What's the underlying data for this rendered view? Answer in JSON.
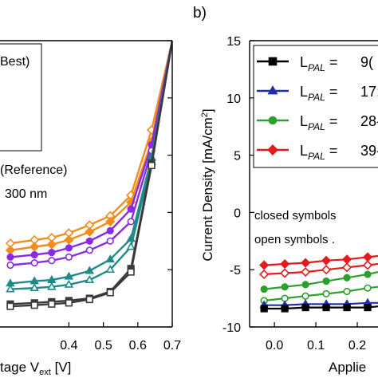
{
  "chart_data": [
    {
      "panel": "a",
      "type": "line",
      "xlabel_parts": [
        "tage V",
        "ext",
        " [V]"
      ],
      "xlim": [
        0.2,
        0.7
      ],
      "ylim": [
        -10,
        15
      ],
      "x_ticks": [
        0.4,
        0.5,
        0.6,
        0.7
      ],
      "x_tick_labels": [
        "0.4",
        "0.5",
        "0.6",
        "0.7"
      ],
      "legend_text": [
        "Best)"
      ],
      "annotations": [
        "(Reference)",
        "300 nm"
      ],
      "series": [
        {
          "color": "#f28c1b",
          "open": true,
          "x": [
            0.23,
            0.3,
            0.35,
            0.4,
            0.46,
            0.52,
            0.58,
            0.64,
            0.7
          ],
          "y": [
            -2.7,
            -2.4,
            -2.2,
            -1.8,
            -1.1,
            -0.3,
            1.5,
            7.2,
            15.0
          ]
        },
        {
          "color": "#f28c1b",
          "open": false,
          "x": [
            0.23,
            0.3,
            0.35,
            0.4,
            0.46,
            0.52,
            0.58,
            0.64,
            0.7
          ],
          "y": [
            -3.3,
            -3.0,
            -2.8,
            -2.4,
            -1.7,
            -0.8,
            0.9,
            6.2,
            15.0
          ]
        },
        {
          "color": "#8a2be2",
          "open": false,
          "x": [
            0.23,
            0.3,
            0.35,
            0.4,
            0.46,
            0.52,
            0.58,
            0.64,
            0.7
          ],
          "y": [
            -3.9,
            -3.7,
            -3.5,
            -3.1,
            -2.5,
            -1.6,
            0.3,
            5.9,
            15.0
          ]
        },
        {
          "color": "#8a2be2",
          "open": true,
          "x": [
            0.23,
            0.3,
            0.35,
            0.4,
            0.46,
            0.52,
            0.58,
            0.64,
            0.7
          ],
          "y": [
            -4.6,
            -4.4,
            -4.2,
            -3.9,
            -3.3,
            -2.5,
            -0.8,
            5.4,
            15.0
          ]
        },
        {
          "color": "#1f8a8a",
          "open": false,
          "x": [
            0.23,
            0.3,
            0.35,
            0.4,
            0.46,
            0.52,
            0.58,
            0.64,
            0.7
          ],
          "y": [
            -6.2,
            -6.0,
            -5.9,
            -5.6,
            -5.1,
            -4.1,
            -2.3,
            4.8,
            15.0
          ]
        },
        {
          "color": "#1f8a8a",
          "open": true,
          "x": [
            0.23,
            0.3,
            0.35,
            0.4,
            0.46,
            0.52,
            0.58,
            0.64,
            0.7
          ],
          "y": [
            -6.7,
            -6.6,
            -6.5,
            -6.3,
            -5.9,
            -5.0,
            -3.0,
            4.4,
            15.0
          ]
        },
        {
          "color": "#3a3a3a",
          "open": false,
          "x": [
            0.23,
            0.3,
            0.35,
            0.4,
            0.46,
            0.52,
            0.58,
            0.64,
            0.7
          ],
          "y": [
            -8.0,
            -7.9,
            -7.8,
            -7.7,
            -7.5,
            -6.9,
            -4.9,
            4.3,
            15.0
          ]
        },
        {
          "color": "#3a3a3a",
          "open": true,
          "x": [
            0.23,
            0.3,
            0.35,
            0.4,
            0.46,
            0.52,
            0.58,
            0.64,
            0.7
          ],
          "y": [
            -8.2,
            -8.1,
            -8.0,
            -7.9,
            -7.6,
            -7.0,
            -5.2,
            4.1,
            15.0
          ]
        }
      ]
    },
    {
      "panel": "b",
      "panel_label": "b)",
      "type": "line",
      "ylabel_parts": [
        "Current Density [mA/cm",
        "2",
        "]"
      ],
      "xlabel": "Applie",
      "xlim": [
        -0.06,
        0.25
      ],
      "ylim": [
        -10,
        15
      ],
      "x_ticks": [
        0.0,
        0.1,
        0.2
      ],
      "x_tick_labels": [
        "0.0",
        "0.1",
        "0.2"
      ],
      "y_ticks": [
        -10,
        -5,
        0,
        5,
        10,
        15
      ],
      "y_tick_labels": [
        "-10",
        "-5",
        "0",
        "5",
        "10",
        "15"
      ],
      "legend": [
        {
          "label_main": "L",
          "label_sub": "PAL",
          "label_rest": " =",
          "value": "9(",
          "color": "#000000",
          "marker": "square"
        },
        {
          "label_main": "L",
          "label_sub": "PAL",
          "label_rest": " =",
          "value": "17:",
          "color": "#1f2fa8",
          "marker": "triangle"
        },
        {
          "label_main": "L",
          "label_sub": "PAL",
          "label_rest": " =",
          "value": "28-",
          "color": "#2ca02c",
          "marker": "circle"
        },
        {
          "label_main": "L",
          "label_sub": "PAL",
          "label_rest": " =",
          "value": "39-",
          "color": "#e41a1c",
          "marker": "diamond"
        }
      ],
      "annotations": [
        "closed symbols",
        "open   symbols ."
      ],
      "series": [
        {
          "color": "#e41a1c",
          "marker": "diamond",
          "open": false,
          "x": [
            -0.025,
            0.025,
            0.075,
            0.125,
            0.175,
            0.225,
            0.25
          ],
          "y": [
            -4.6,
            -4.5,
            -4.4,
            -4.2,
            -4.1,
            -3.9,
            -3.8
          ]
        },
        {
          "color": "#e41a1c",
          "marker": "diamond",
          "open": true,
          "x": [
            -0.025,
            0.025,
            0.075,
            0.125,
            0.175,
            0.225,
            0.25
          ],
          "y": [
            -5.4,
            -5.3,
            -5.2,
            -5.0,
            -4.8,
            -4.6,
            -4.5
          ]
        },
        {
          "color": "#2ca02c",
          "marker": "circle",
          "open": false,
          "x": [
            -0.025,
            0.025,
            0.075,
            0.125,
            0.175,
            0.225,
            0.25
          ],
          "y": [
            -6.7,
            -6.5,
            -6.3,
            -6.0,
            -5.7,
            -5.4,
            -5.2
          ]
        },
        {
          "color": "#2ca02c",
          "marker": "circle",
          "open": true,
          "x": [
            -0.025,
            0.025,
            0.075,
            0.125,
            0.175,
            0.225,
            0.25
          ],
          "y": [
            -7.7,
            -7.5,
            -7.3,
            -7.1,
            -6.9,
            -6.6,
            -6.5
          ]
        },
        {
          "color": "#1f2fa8",
          "marker": "triangle",
          "open": false,
          "x": [
            -0.025,
            0.025,
            0.075,
            0.125,
            0.175,
            0.225,
            0.25
          ],
          "y": [
            -8.1,
            -8.1,
            -8.0,
            -8.0,
            -8.0,
            -7.9,
            -7.9
          ]
        },
        {
          "color": "#000000",
          "marker": "square",
          "open": false,
          "x": [
            -0.025,
            0.025,
            0.075,
            0.125,
            0.175,
            0.225,
            0.25
          ],
          "y": [
            -8.4,
            -8.4,
            -8.3,
            -8.3,
            -8.3,
            -8.3,
            -8.2
          ]
        }
      ]
    }
  ]
}
